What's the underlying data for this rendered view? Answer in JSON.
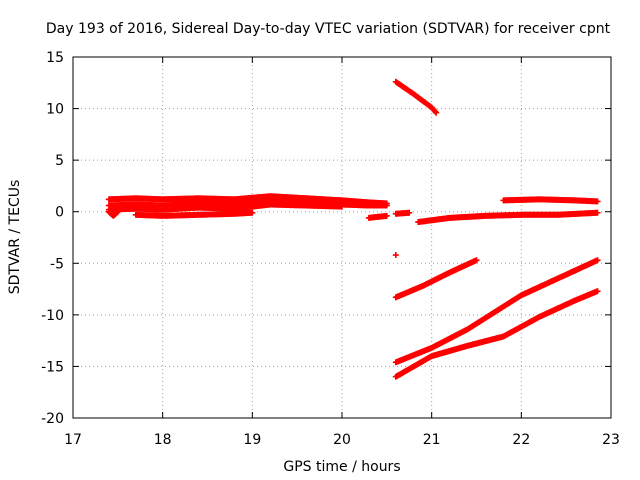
{
  "chart_data": {
    "type": "scatter",
    "title": "Day 193 of 2016, Sidereal Day-to-day VTEC variation (SDTVAR) for receiver cpnt",
    "xlabel": "GPS time / hours",
    "ylabel": "SDTVAR / TECUs",
    "xlim": [
      17,
      23
    ],
    "ylim": [
      -20,
      15
    ],
    "xticks": [
      "17",
      "18",
      "19",
      "20",
      "21",
      "22",
      "23"
    ],
    "yticks": [
      "15",
      "10",
      "5",
      "0",
      "-5",
      "-10",
      "-15",
      "-20"
    ],
    "grid": true,
    "marker": "plus",
    "color": "#ff0000",
    "series": [
      {
        "x": [
          17.4,
          17.7,
          18.0,
          18.4,
          18.8,
          19.2,
          19.6,
          20.0,
          20.3,
          20.5
        ],
        "y": [
          1.2,
          1.3,
          1.2,
          1.3,
          1.2,
          1.5,
          1.3,
          1.1,
          0.9,
          0.8
        ]
      },
      {
        "x": [
          17.4,
          17.7,
          18.0,
          18.4,
          18.8,
          19.2,
          19.6,
          20.0,
          20.3,
          20.5
        ],
        "y": [
          0.6,
          0.7,
          0.6,
          0.8,
          0.7,
          1.0,
          0.9,
          0.7,
          0.6,
          0.6
        ]
      },
      {
        "x": [
          17.4,
          17.7,
          18.0,
          18.4,
          18.8,
          19.2,
          19.6,
          20.0
        ],
        "y": [
          0.2,
          0.3,
          0.2,
          0.4,
          0.3,
          0.7,
          0.6,
          0.5
        ]
      },
      {
        "x": [
          17.4,
          17.45,
          17.5
        ],
        "y": [
          0.0,
          -0.4,
          0.0
        ]
      },
      {
        "x": [
          17.7,
          18.0,
          18.4,
          18.8,
          19.0
        ],
        "y": [
          -0.3,
          -0.4,
          -0.3,
          -0.2,
          -0.1
        ]
      },
      {
        "x": [
          20.3,
          20.5
        ],
        "y": [
          -0.6,
          -0.4
        ]
      },
      {
        "x": [
          20.6,
          20.75
        ],
        "y": [
          -0.2,
          -0.1
        ]
      },
      {
        "x": [
          20.6,
          20.8,
          21.0,
          21.05
        ],
        "y": [
          12.6,
          11.4,
          10.1,
          9.6
        ]
      },
      {
        "x": [
          20.6
        ],
        "y": [
          -4.2
        ]
      },
      {
        "x": [
          20.85,
          21.2,
          21.6,
          22.0,
          22.4,
          22.85
        ],
        "y": [
          -1.0,
          -0.6,
          -0.4,
          -0.3,
          -0.3,
          -0.1
        ]
      },
      {
        "x": [
          21.8,
          22.2,
          22.6,
          22.85
        ],
        "y": [
          1.1,
          1.2,
          1.1,
          1.0
        ]
      },
      {
        "x": [
          20.6,
          20.9,
          21.2,
          21.5
        ],
        "y": [
          -8.3,
          -7.2,
          -5.9,
          -4.7
        ]
      },
      {
        "x": [
          20.6,
          21.0,
          21.4,
          21.8,
          22.0,
          22.4,
          22.85
        ],
        "y": [
          -14.6,
          -13.2,
          -11.4,
          -9.2,
          -8.1,
          -6.5,
          -4.7
        ]
      },
      {
        "x": [
          20.6,
          21.0,
          21.4,
          21.8,
          22.2,
          22.6,
          22.85
        ],
        "y": [
          -16.0,
          -14.0,
          -13.0,
          -12.1,
          -10.2,
          -8.6,
          -7.7
        ]
      }
    ]
  }
}
